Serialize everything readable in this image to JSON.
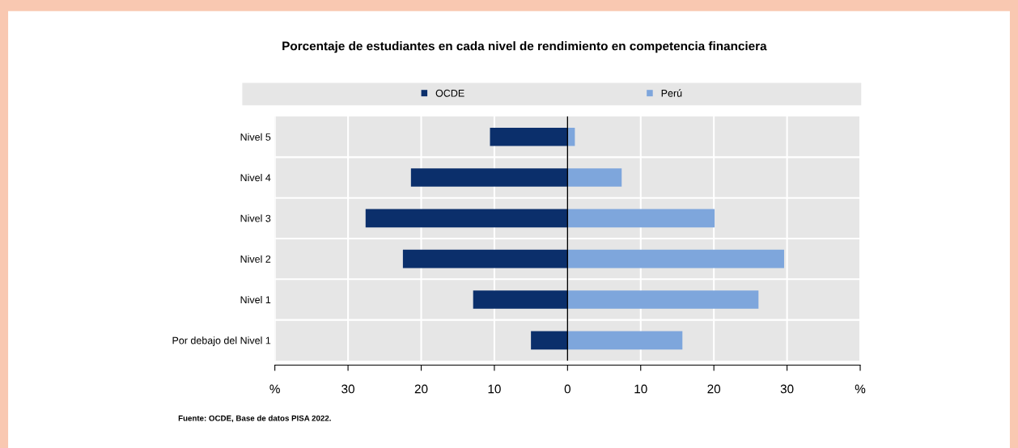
{
  "chart_data": {
    "type": "bar",
    "orientation": "horizontal",
    "stacked": true,
    "title": "Porcentaje de estudiantes en cada nivel de rendimiento en competencia financiera",
    "categories": [
      "Nivel 5",
      "Nivel 4",
      "Nivel 3",
      "Nivel 2",
      "Nivel 1",
      "Por debajo del Nivel 1"
    ],
    "series": [
      {
        "name": "OCDE",
        "color": "#0b2f6b",
        "values": [
          -10.6,
          -21.4,
          -27.6,
          -22.5,
          -12.9,
          -5.0
        ]
      },
      {
        "name": "Perú",
        "color": "#7ea6dc",
        "values": [
          1.0,
          7.4,
          20.1,
          29.6,
          26.1,
          15.7
        ]
      }
    ],
    "xlim": [
      -40,
      40
    ],
    "xticks": [
      {
        "value": -40,
        "label": "%"
      },
      {
        "value": -30,
        "label": "30"
      },
      {
        "value": -20,
        "label": "20"
      },
      {
        "value": -10,
        "label": "10"
      },
      0,
      10,
      20,
      30,
      {
        "value": 40,
        "label": "%"
      }
    ],
    "grid": "x",
    "legend": "top",
    "annotations": [
      "Fuente: OCDE, Base de datos PISA 2022."
    ]
  }
}
